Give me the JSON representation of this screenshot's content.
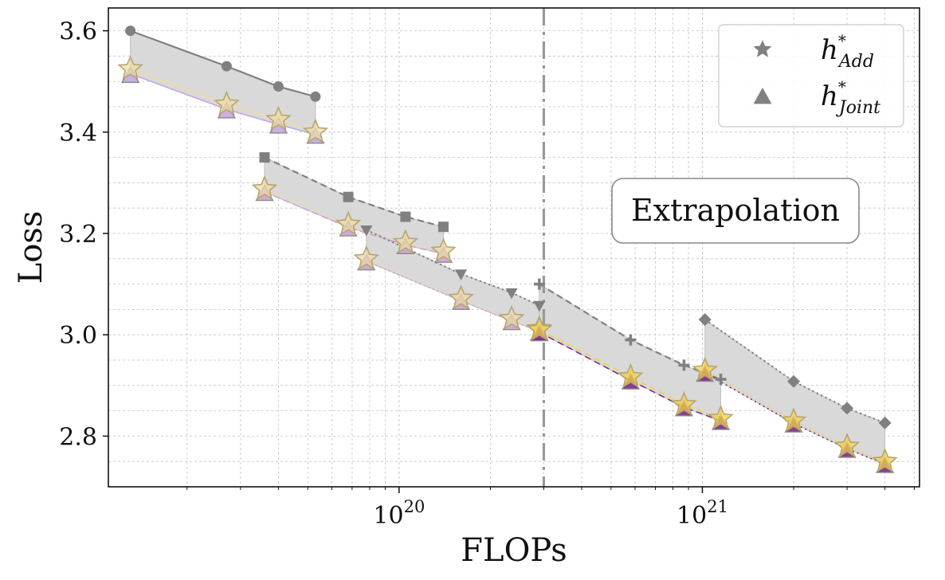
{
  "chart_data": {
    "type": "line",
    "title": "",
    "xlabel": "FLOPs",
    "ylabel": "Loss",
    "x_scale": "log",
    "xlim": [
      1.1e+19,
      5.2e+21
    ],
    "ylim": [
      2.7,
      3.645
    ],
    "x_ticks": [
      {
        "value": 1e+20,
        "base": "10",
        "exp": "20"
      },
      {
        "value": 1e+21,
        "base": "10",
        "exp": "21"
      }
    ],
    "y_ticks": [
      {
        "value": 2.8,
        "label": "2.8"
      },
      {
        "value": 3.0,
        "label": "3.0"
      },
      {
        "value": 3.2,
        "label": "3.2"
      },
      {
        "value": 3.4,
        "label": "3.4"
      },
      {
        "value": 3.6,
        "label": "3.6"
      }
    ],
    "grid": true,
    "extrapolation_boundary": 3e+20,
    "annotation": {
      "text": "Extrapolation",
      "x": 1e+21,
      "y": 3.25
    },
    "legend": {
      "placement": "top-right",
      "entries": [
        {
          "marker": "star",
          "base": "h",
          "sup": "*",
          "sub": "Add"
        },
        {
          "marker": "triangle",
          "base": "h",
          "sup": "*",
          "sub": "Joint"
        }
      ]
    },
    "groups": [
      {
        "reference_marker": "circle",
        "reference_line": "solid",
        "reference": {
          "x": [
            1.3e+19,
            2.7e+19,
            4e+19,
            5.3e+19
          ],
          "y": [
            3.6,
            3.53,
            3.49,
            3.47
          ]
        },
        "h_add": {
          "x": [
            1.3e+19,
            2.7e+19,
            4e+19,
            5.3e+19
          ],
          "y": [
            3.525,
            3.455,
            3.425,
            3.4
          ]
        },
        "h_joint": {
          "x": [
            1.3e+19,
            2.7e+19,
            4e+19,
            5.3e+19
          ],
          "y": [
            3.515,
            3.445,
            3.415,
            3.395
          ]
        },
        "color": "#c3a9e0",
        "add_color": "#ecdca4"
      },
      {
        "reference_marker": "square",
        "reference_line": "dashed",
        "reference": {
          "x": [
            3.6e+19,
            6.8e+19,
            1.05e+20,
            1.4e+20
          ],
          "y": [
            3.35,
            3.272,
            3.233,
            3.213
          ]
        },
        "h_add": {
          "x": [
            3.6e+19,
            6.8e+19,
            1.05e+20,
            1.4e+20
          ],
          "y": [
            3.288,
            3.218,
            3.182,
            3.165
          ]
        },
        "h_joint": {
          "x": [
            3.6e+19,
            6.8e+19,
            1.05e+20,
            1.4e+20
          ],
          "y": [
            3.282,
            3.212,
            3.177,
            3.16
          ]
        },
        "color": "#caa2d4",
        "add_color": "#ecd9a8"
      },
      {
        "reference_marker": "triangle-down",
        "reference_line": "dotted",
        "reference": {
          "x": [
            7.8e+19,
            1.6e+20,
            2.35e+20,
            2.9e+20
          ],
          "y": [
            3.207,
            3.12,
            3.083,
            3.058
          ]
        },
        "h_add": {
          "x": [
            7.8e+19,
            1.6e+20,
            2.35e+20,
            2.9e+20
          ],
          "y": [
            3.15,
            3.072,
            3.032,
            3.012
          ]
        },
        "h_joint": {
          "x": [
            7.8e+19,
            1.6e+20,
            2.35e+20,
            2.9e+20
          ],
          "y": [
            3.145,
            3.067,
            3.027,
            3.007
          ]
        },
        "color": "#c9a0d0",
        "add_color": "#ecd9a8"
      },
      {
        "reference_marker": "plus",
        "reference_line": "dashed",
        "reference": {
          "x": [
            2.9e+20,
            5.8e+20,
            8.7e+20,
            1.15e+21
          ],
          "y": [
            3.1,
            2.99,
            2.94,
            2.912
          ]
        },
        "h_add": {
          "x": [
            2.9e+20,
            5.8e+20,
            8.7e+20,
            1.15e+21
          ],
          "y": [
            3.01,
            2.917,
            2.862,
            2.835
          ]
        },
        "h_joint": {
          "x": [
            2.9e+20,
            5.8e+20,
            8.7e+20,
            1.15e+21
          ],
          "y": [
            3.005,
            2.91,
            2.857,
            2.83
          ]
        },
        "color": "#7b2a84",
        "add_color": "#f2d04a"
      },
      {
        "reference_marker": "diamond",
        "reference_line": "dotted",
        "reference": {
          "x": [
            1.02e+21,
            2e+21,
            3e+21,
            4e+21
          ],
          "y": [
            3.03,
            2.908,
            2.855,
            2.826
          ]
        },
        "h_add": {
          "x": [
            1.02e+21,
            2e+21,
            3e+21,
            4e+21
          ],
          "y": [
            2.93,
            2.83,
            2.78,
            2.75
          ]
        },
        "h_joint": {
          "x": [
            1.02e+21,
            2e+21,
            3e+21,
            4e+21
          ],
          "y": [
            2.925,
            2.825,
            2.775,
            2.745
          ]
        },
        "color": "#7b2a84",
        "add_color": "#f2d04a"
      }
    ],
    "colors": {
      "reference": "#808080",
      "band_fill": "#d9d9d9",
      "boundary": "#999999",
      "star_edge": "#b8a470",
      "grid": "#c4c4c4"
    }
  }
}
